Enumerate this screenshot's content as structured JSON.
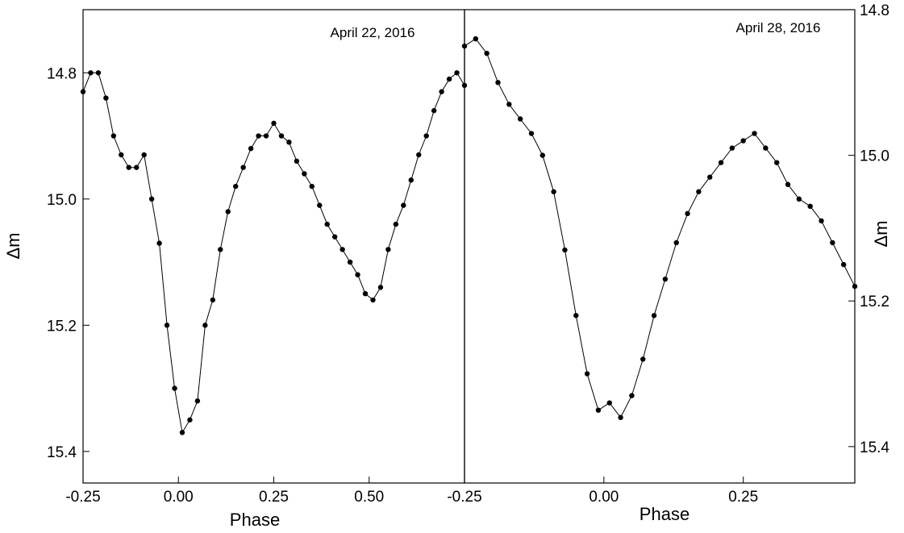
{
  "chart_data": [
    {
      "type": "scatter",
      "panel": "left",
      "annotation": "April 22, 2016",
      "xlabel": "Phase",
      "ylabel": "Δm",
      "xlim": [
        -0.25,
        0.75
      ],
      "ylim": [
        15.45,
        14.7
      ],
      "y_inverted": true,
      "xticks": [
        "-0.25",
        "0.00",
        "0.25",
        "0.50"
      ],
      "yticks": [
        "14.8",
        "15.0",
        "15.2",
        "15.4"
      ],
      "grid": false,
      "series": [
        {
          "markers": "filled circles joined by line",
          "x": [
            -0.25,
            -0.23,
            -0.21,
            -0.19,
            -0.17,
            -0.15,
            -0.13,
            -0.11,
            -0.09,
            -0.07,
            -0.05,
            -0.03,
            -0.01,
            0.01,
            0.03,
            0.05,
            0.07,
            0.09,
            0.11,
            0.13,
            0.15,
            0.17,
            0.19,
            0.21,
            0.23,
            0.25,
            0.27,
            0.29,
            0.31,
            0.33,
            0.35,
            0.37,
            0.39,
            0.41,
            0.43,
            0.45,
            0.47,
            0.49,
            0.51,
            0.53,
            0.55,
            0.57,
            0.59,
            0.61,
            0.63,
            0.65,
            0.67,
            0.69,
            0.71,
            0.73,
            0.75
          ],
          "y": [
            14.83,
            14.8,
            14.8,
            14.84,
            14.9,
            14.93,
            14.95,
            14.95,
            14.93,
            15.0,
            15.07,
            15.2,
            15.3,
            15.37,
            15.35,
            15.32,
            15.2,
            15.16,
            15.08,
            15.02,
            14.98,
            14.95,
            14.92,
            14.9,
            14.9,
            14.88,
            14.9,
            14.91,
            14.94,
            14.96,
            14.98,
            15.01,
            15.04,
            15.06,
            15.08,
            15.1,
            15.12,
            15.15,
            15.16,
            15.14,
            15.08,
            15.04,
            15.01,
            14.97,
            14.93,
            14.9,
            14.86,
            14.83,
            14.81,
            14.8,
            14.82
          ]
        }
      ]
    },
    {
      "type": "scatter",
      "panel": "right",
      "annotation": "April 28, 2016",
      "xlabel": "Phase",
      "ylabel": "Δm",
      "xlim": [
        -0.25,
        0.45
      ],
      "ylim": [
        15.45,
        14.8
      ],
      "y_inverted": true,
      "xticks": [
        "-0.25",
        "0.00",
        "0.25"
      ],
      "yticks": [
        "14.8",
        "15.0",
        "15.2",
        "15.4"
      ],
      "grid": false,
      "series": [
        {
          "markers": "filled circles joined by line",
          "x": [
            -0.25,
            -0.23,
            -0.21,
            -0.19,
            -0.17,
            -0.15,
            -0.13,
            -0.11,
            -0.09,
            -0.07,
            -0.05,
            -0.03,
            -0.01,
            0.01,
            0.03,
            0.05,
            0.07,
            0.09,
            0.11,
            0.13,
            0.15,
            0.17,
            0.19,
            0.21,
            0.23,
            0.25,
            0.27,
            0.29,
            0.31,
            0.33,
            0.35,
            0.37,
            0.39,
            0.41,
            0.43,
            0.45
          ],
          "y": [
            14.85,
            14.84,
            14.86,
            14.9,
            14.93,
            14.95,
            14.97,
            15.0,
            15.05,
            15.13,
            15.22,
            15.3,
            15.35,
            15.34,
            15.36,
            15.33,
            15.28,
            15.22,
            15.17,
            15.12,
            15.08,
            15.05,
            15.03,
            15.01,
            14.99,
            14.98,
            14.97,
            14.99,
            15.01,
            15.04,
            15.06,
            15.07,
            15.09,
            15.12,
            15.15,
            15.18
          ]
        }
      ]
    }
  ]
}
